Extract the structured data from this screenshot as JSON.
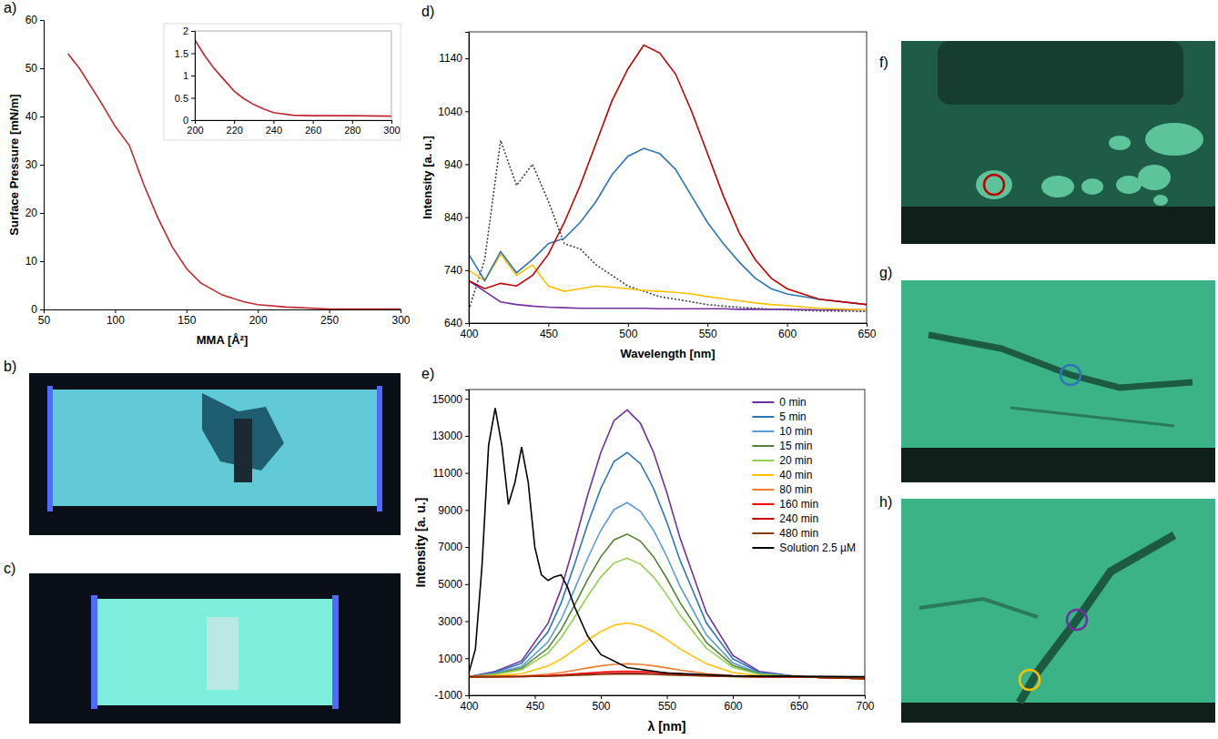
{
  "chart_data": [
    {
      "type": "line",
      "title": "a)",
      "x_label": "MMA [Å²]",
      "y_label": "Surface Pressure [mN/m]",
      "x": [
        67,
        75,
        90,
        100,
        110,
        120,
        130,
        140,
        150,
        160,
        175,
        190,
        200,
        220,
        250,
        300
      ],
      "values": [
        53,
        50,
        43,
        38,
        34,
        26,
        19,
        13,
        8.5,
        5.5,
        3,
        1.6,
        1,
        0.5,
        0.1,
        0.1
      ],
      "color": "#c0282d",
      "xlim": [
        50,
        300
      ],
      "ylim": [
        0,
        60
      ],
      "xticks": [
        50,
        100,
        150,
        200,
        250,
        300
      ],
      "yticks": [
        0,
        10,
        20,
        30,
        40,
        50,
        60
      ],
      "grid": false
    },
    {
      "type": "line",
      "x": [
        200,
        205,
        210,
        215,
        220,
        225,
        230,
        235,
        240,
        250,
        260,
        280,
        300
      ],
      "values": [
        1.8,
        1.45,
        1.15,
        0.9,
        0.65,
        0.48,
        0.35,
        0.25,
        0.17,
        0.11,
        0.1,
        0.1,
        0.09
      ],
      "color": "#c0282d",
      "xlim": [
        200,
        300
      ],
      "ylim": [
        0,
        2
      ],
      "xticks": [
        200,
        220,
        240,
        260,
        280,
        300
      ],
      "yticks": [
        0,
        0.5,
        1,
        1.5,
        2
      ],
      "grid": false
    },
    {
      "type": "line",
      "title": "d)",
      "x_label": "Wavelength [nm]",
      "y_label": "Intensity [a. u.]",
      "x": [
        400,
        410,
        420,
        430,
        440,
        450,
        460,
        470,
        480,
        490,
        500,
        510,
        520,
        530,
        540,
        550,
        560,
        570,
        580,
        590,
        600,
        620,
        650
      ],
      "series": [
        {
          "color": "#404040",
          "line_style": "dotted",
          "values": [
            665,
            760,
            985,
            900,
            940,
            870,
            790,
            780,
            750,
            730,
            710,
            700,
            690,
            685,
            680,
            675,
            672,
            670,
            668,
            666,
            665,
            663,
            662
          ]
        },
        {
          "color": "#7030a0",
          "values": [
            720,
            700,
            680,
            675,
            672,
            670,
            669,
            668,
            668,
            668,
            668,
            668,
            667,
            667,
            667,
            667,
            667,
            666,
            666,
            666,
            666,
            665,
            665
          ]
        },
        {
          "color": "#ffc000",
          "values": [
            740,
            720,
            770,
            730,
            750,
            710,
            700,
            705,
            710,
            708,
            705,
            702,
            700,
            698,
            695,
            690,
            686,
            682,
            678,
            675,
            673,
            668,
            665
          ]
        },
        {
          "color": "#2e75b6",
          "values": [
            770,
            720,
            775,
            735,
            760,
            790,
            800,
            830,
            870,
            920,
            955,
            970,
            960,
            930,
            880,
            830,
            790,
            755,
            725,
            705,
            695,
            685,
            675
          ]
        },
        {
          "color": "#c00000",
          "values": [
            720,
            705,
            715,
            710,
            730,
            770,
            830,
            900,
            980,
            1060,
            1120,
            1165,
            1150,
            1110,
            1040,
            960,
            880,
            810,
            760,
            725,
            705,
            685,
            675
          ]
        }
      ],
      "xlim": [
        400,
        650
      ],
      "ylim": [
        640,
        1190
      ],
      "xticks": [
        400,
        450,
        500,
        550,
        600,
        650
      ],
      "yticks": [
        640,
        740,
        840,
        940,
        1040,
        1140
      ],
      "grid": false
    },
    {
      "type": "line",
      "title": "e)",
      "x_label": "λ [nm]",
      "y_label": "Intensity [a. u.]",
      "x": [
        400,
        420,
        440,
        460,
        470,
        480,
        490,
        500,
        510,
        520,
        530,
        540,
        550,
        560,
        580,
        600,
        620,
        650,
        700
      ],
      "series": [
        {
          "name": "0 min",
          "color": "#7030a0",
          "values": [
            0,
            290,
            860,
            2880,
            4750,
            7200,
            9790,
            12100,
            13820,
            14400,
            13680,
            12100,
            9940,
            7490,
            3460,
            1150,
            290,
            0,
            -100
          ]
        },
        {
          "name": "5 min",
          "color": "#2e75b6",
          "values": [
            0,
            240,
            730,
            2420,
            3990,
            6050,
            8230,
            10160,
            11620,
            12100,
            11500,
            10160,
            8350,
            6290,
            2900,
            970,
            240,
            0,
            -100
          ]
        },
        {
          "name": "10 min",
          "color": "#5b9bd5",
          "values": [
            0,
            190,
            560,
            1880,
            3100,
            4700,
            6390,
            7900,
            9020,
            9400,
            8930,
            7900,
            6490,
            4890,
            2260,
            750,
            190,
            0,
            -100
          ]
        },
        {
          "name": "15 min",
          "color": "#548235",
          "values": [
            0,
            150,
            460,
            1540,
            2540,
            3850,
            5240,
            6470,
            7390,
            7700,
            7320,
            6470,
            5310,
            4000,
            1850,
            620,
            150,
            0,
            -100
          ]
        },
        {
          "name": "20 min",
          "color": "#92d050",
          "values": [
            0,
            130,
            380,
            1280,
            2110,
            3200,
            4350,
            5380,
            6140,
            6400,
            6080,
            5380,
            4420,
            3330,
            1540,
            510,
            130,
            0,
            -100
          ]
        },
        {
          "name": "40 min",
          "color": "#ffc000",
          "values": [
            0,
            60,
            170,
            580,
            960,
            1450,
            1970,
            2440,
            2780,
            2900,
            2760,
            2440,
            2000,
            1510,
            700,
            230,
            60,
            0,
            -100
          ]
        },
        {
          "name": "80 min",
          "color": "#ed7d31",
          "values": [
            0,
            10,
            40,
            140,
            230,
            350,
            480,
            590,
            670,
            700,
            670,
            590,
            480,
            360,
            170,
            60,
            10,
            0,
            -100
          ]
        },
        {
          "name": "160 min",
          "color": "#ff0000",
          "values": [
            0,
            10,
            20,
            60,
            100,
            150,
            200,
            250,
            290,
            300,
            290,
            250,
            210,
            160,
            70,
            20,
            10,
            0,
            -100
          ]
        },
        {
          "name": "240 min",
          "color": "#c00000",
          "values": [
            0,
            0,
            10,
            40,
            70,
            100,
            140,
            170,
            190,
            200,
            190,
            170,
            140,
            100,
            50,
            20,
            0,
            0,
            -100
          ]
        },
        {
          "name": "480 min",
          "color": "#843c0c",
          "values": [
            0,
            0,
            10,
            30,
            50,
            80,
            100,
            130,
            140,
            150,
            140,
            130,
            100,
            80,
            40,
            10,
            0,
            0,
            -100
          ]
        },
        {
          "name": "Solution 2.5 µM",
          "color": "#000000",
          "x": [
            400,
            405,
            410,
            415,
            420,
            425,
            430,
            435,
            440,
            445,
            450,
            455,
            460,
            465,
            470,
            475,
            480,
            490,
            500,
            520,
            550,
            600,
            700
          ],
          "values": [
            200,
            1500,
            6000,
            12500,
            14500,
            12500,
            9300,
            10500,
            12400,
            10500,
            7000,
            5500,
            5200,
            5400,
            5500,
            4800,
            3800,
            2200,
            1200,
            500,
            200,
            50,
            0
          ]
        }
      ],
      "xlim": [
        400,
        700
      ],
      "ylim": [
        -1000,
        15500
      ],
      "xticks": [
        400,
        450,
        500,
        550,
        600,
        650,
        700
      ],
      "yticks": [
        -1000,
        1000,
        3000,
        5000,
        7000,
        9000,
        11000,
        13000,
        15000
      ],
      "grid": false,
      "legend": "top-right"
    }
  ],
  "images": [
    {
      "title": "b)"
    },
    {
      "title": "c)"
    },
    {
      "title": "f)"
    },
    {
      "title": "g)"
    },
    {
      "title": "h)"
    }
  ]
}
